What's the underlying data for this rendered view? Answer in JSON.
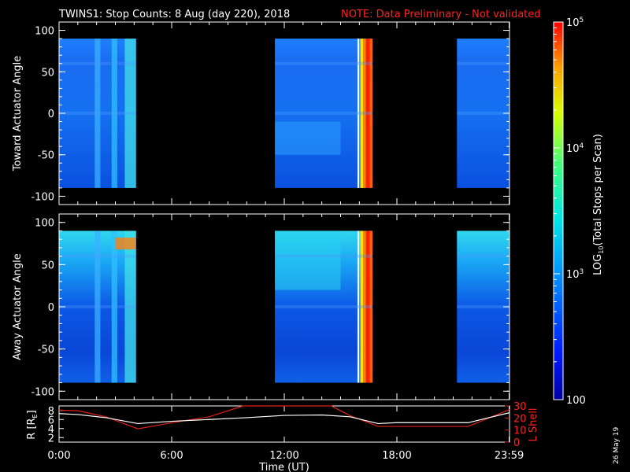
{
  "header": {
    "title": "TWINS1: Stop Counts:  8 Aug (day 220), 2018",
    "note": "NOTE: Data Preliminary - Not validated"
  },
  "colors": {
    "background": "#000000",
    "note": "#ff2020",
    "r_line": "#ffffff",
    "lshell_line": "#e0201a"
  },
  "panels": [
    {
      "name": "toward",
      "ylabel": "Toward Actuator Angle",
      "yticks": [
        "100",
        "50",
        "0",
        "-50",
        "-100"
      ],
      "ylim": [
        -110,
        110
      ]
    },
    {
      "name": "away",
      "ylabel": "Away Actuator Angle",
      "yticks": [
        "100",
        "50",
        "0",
        "-50",
        "-100"
      ],
      "ylim": [
        -110,
        110
      ]
    }
  ],
  "colorbar": {
    "label_parts": [
      "LOG",
      "10",
      "(Total Stops per Scan)"
    ],
    "ticks": [
      {
        "base": "10",
        "exp": "5",
        "log": 5
      },
      {
        "base": "10",
        "exp": "4",
        "log": 4
      },
      {
        "base": "10",
        "exp": "3",
        "log": 3
      },
      {
        "base": "100",
        "exp": "",
        "log": 2
      }
    ],
    "range_log": [
      2,
      5
    ]
  },
  "orbit": {
    "left_label": "R [R",
    "left_label_sub": "E",
    "left_label_end": "]",
    "left_ticks": [
      "8",
      "6",
      "4",
      "2"
    ],
    "right_label": "L Shell",
    "right_ticks": [
      "30",
      "20",
      "10",
      "0"
    ]
  },
  "xaxis": {
    "label": "Time (UT)",
    "ticks": [
      "0:00",
      "6:00",
      "12:00",
      "18:00",
      "23:59"
    ]
  },
  "footer": {
    "date": "26 May 19"
  },
  "chart_data": {
    "type": "heatmap",
    "x_unit": "hours UT",
    "xlim": [
      0,
      24
    ],
    "x_tick_values": [
      0,
      6,
      12,
      18,
      23.98
    ],
    "data_blocks": [
      {
        "start": 0.0,
        "end": 4.1
      },
      {
        "start": 11.5,
        "end": 16.7
      },
      {
        "start": 21.2,
        "end": 24.0
      }
    ],
    "angle_range": [
      -90,
      90
    ],
    "colorscale": "log10 counts, blue (100) to red (1e5)",
    "orbit_r": {
      "ylim": [
        1,
        9
      ],
      "x": [
        0,
        1,
        2.5,
        4.2,
        6,
        8,
        10,
        12,
        14,
        15.5,
        17,
        18,
        21,
        21.8,
        24
      ],
      "y": [
        7.3,
        7.1,
        6.4,
        5.1,
        5.6,
        6.0,
        6.4,
        6.9,
        7.0,
        6.6,
        5.1,
        5.3,
        5.3,
        5.3,
        7.5
      ]
    },
    "orbit_lshell": {
      "ylim": [
        0,
        30
      ],
      "x": [
        0,
        1,
        2.5,
        4.2,
        6,
        8,
        9.8,
        14.5,
        15.5,
        17,
        18,
        21,
        21.8,
        24
      ],
      "y": [
        26.5,
        26,
        21,
        11,
        16,
        21,
        30,
        30,
        22,
        13,
        13,
        13,
        13,
        27
      ]
    }
  }
}
